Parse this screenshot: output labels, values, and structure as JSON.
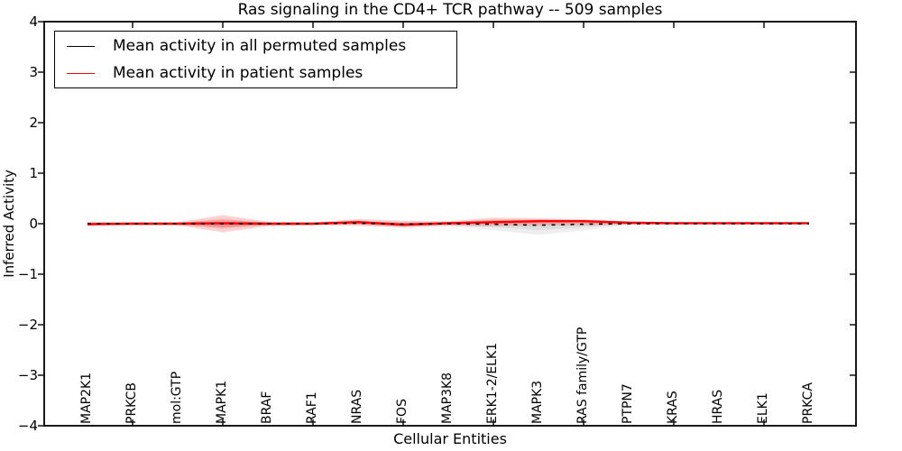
{
  "chart_data": {
    "type": "line",
    "title": "Ras signaling in the CD4+ TCR pathway -- 509 samples",
    "xlabel": "Cellular Entities",
    "ylabel": "Inferred Activity",
    "ylim": [
      -4,
      4
    ],
    "yticks": [
      4,
      3,
      2,
      1,
      0,
      -1,
      -2,
      -3,
      -4
    ],
    "grid": false,
    "legend_position": "upper left",
    "frame_color": "#000000",
    "background_color": "#ffffff",
    "categories": [
      "MAP2K1",
      "PRKCB",
      "mol:GTP",
      "MAPK1",
      "BRAF",
      "RAF1",
      "NRAS",
      "FOS",
      "MAP3K8",
      "ERK1-2/ELK1",
      "MAPK3",
      "RAS family/GTP",
      "PTPN7",
      "KRAS",
      "HRAS",
      "ELK1",
      "PRKCA"
    ],
    "series": [
      {
        "name": "Mean activity in all permuted samples",
        "color": "#000000",
        "line_style": "dashed",
        "values": [
          0,
          0,
          0,
          0,
          0,
          0,
          0.01,
          -0.01,
          0,
          -0.01,
          -0.03,
          -0.01,
          0,
          0,
          0,
          0,
          0
        ],
        "band_upper": [
          0.03,
          0.02,
          0.02,
          0.05,
          0.02,
          0.02,
          0.03,
          0.03,
          0.03,
          0.05,
          0.05,
          0.04,
          0.02,
          0.01,
          0.01,
          0.01,
          0.01
        ],
        "band_lower": [
          -0.03,
          -0.02,
          -0.02,
          -0.1,
          -0.03,
          -0.02,
          -0.03,
          -0.08,
          -0.04,
          -0.13,
          -0.22,
          -0.13,
          -0.03,
          -0.01,
          -0.01,
          -0.01,
          -0.01
        ],
        "band_color": "#888888"
      },
      {
        "name": "Mean activity in patient samples",
        "color": "#ff0000",
        "line_style": "solid",
        "values": [
          -0.01,
          0,
          0,
          0.01,
          0,
          0,
          0.03,
          -0.02,
          0.01,
          0.03,
          0.05,
          0.05,
          0.02,
          0.01,
          0.01,
          0.01,
          0.01
        ],
        "band_upper": [
          0.04,
          0.03,
          0.03,
          0.17,
          0.04,
          0.03,
          0.09,
          0.06,
          0.05,
          0.12,
          0.11,
          0.09,
          0.04,
          0.03,
          0.03,
          0.03,
          0.02
        ],
        "band_lower": [
          -0.05,
          -0.03,
          -0.03,
          -0.17,
          -0.05,
          -0.03,
          -0.04,
          -0.07,
          -0.04,
          -0.05,
          -0.04,
          -0.03,
          -0.02,
          -0.02,
          -0.02,
          -0.02,
          -0.02
        ],
        "band_color": "#ff0000"
      }
    ]
  }
}
